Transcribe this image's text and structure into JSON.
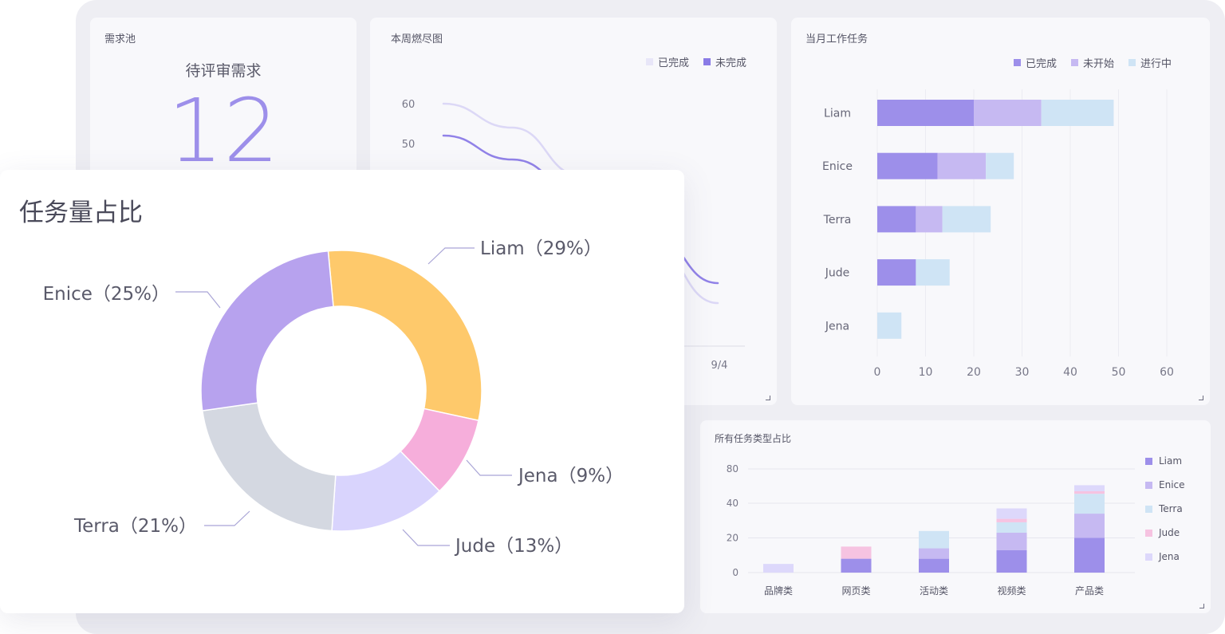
{
  "pool": {
    "title": "需求池",
    "label": "待评审需求",
    "value": "12"
  },
  "burndown": {
    "title": "本周燃尽图",
    "legend": [
      "已完成",
      "未完成"
    ],
    "yticks": [
      "60",
      "50"
    ],
    "xtick_last": "9/4"
  },
  "monthly": {
    "title": "当月工作任务",
    "legend": [
      "已完成",
      "未开始",
      "进行中"
    ]
  },
  "types": {
    "title": "所有任务类型占比"
  },
  "share": {
    "title": "任务量占比"
  },
  "colors": {
    "done": "#9d8fea",
    "notstarted": "#c6b9f2",
    "inprogress": "#cfe4f5",
    "liam": "#9d8fea",
    "enice": "#c6b9f2",
    "terra": "#cfe4f5",
    "jude": "#f6c3e1",
    "jena": "#ddd8fb",
    "pie_liam": "#fec96b",
    "pie_jena": "#f6aedb",
    "pie_jude": "#d9d4fd",
    "pie_terra": "#d4d8e1",
    "pie_enice": "#b7a2ee"
  },
  "chart_data": [
    {
      "type": "line",
      "title": "本周燃尽图",
      "series": [
        {
          "name": "已完成",
          "points": [
            [
              0,
              60
            ],
            [
              1,
              54
            ],
            [
              2,
              42
            ],
            [
              3,
              25
            ],
            [
              4,
              10
            ]
          ]
        },
        {
          "name": "未完成",
          "points": [
            [
              0,
              52
            ],
            [
              1,
              46
            ],
            [
              2,
              38
            ],
            [
              3,
              28
            ],
            [
              4,
              15
            ]
          ]
        }
      ],
      "xlabels": [
        "",
        "",
        "",
        "",
        "9/4"
      ],
      "yticks": [
        50,
        60
      ]
    },
    {
      "type": "bar",
      "orientation": "horizontal",
      "stacked": true,
      "title": "当月工作任务",
      "categories": [
        "Liam",
        "Enice",
        "Terra",
        "Jude",
        "Jena"
      ],
      "series": [
        {
          "name": "已完成",
          "values": [
            20,
            12.5,
            8,
            8,
            0
          ]
        },
        {
          "name": "未开始",
          "values": [
            14,
            10,
            5.5,
            0,
            0
          ]
        },
        {
          "name": "进行中",
          "values": [
            15,
            5.8,
            10,
            7,
            5
          ]
        }
      ],
      "xlim": [
        0,
        60
      ],
      "xticks": [
        0,
        10,
        20,
        30,
        40,
        50,
        60
      ],
      "legend_position": "top-right"
    },
    {
      "type": "bar",
      "stacked": true,
      "title": "所有任务类型占比",
      "categories": [
        "品牌类",
        "网页类",
        "活动类",
        "视频类",
        "产品类"
      ],
      "series": [
        {
          "name": "Liam",
          "values": [
            0,
            8,
            8,
            13,
            20
          ]
        },
        {
          "name": "Enice",
          "values": [
            0,
            0,
            6,
            10,
            14
          ]
        },
        {
          "name": "Terra",
          "values": [
            0,
            0,
            10,
            6,
            17
          ]
        },
        {
          "name": "Jude",
          "values": [
            0,
            7,
            0,
            2,
            3
          ]
        },
        {
          "name": "Jena",
          "values": [
            5,
            0,
            0,
            6,
            7
          ]
        }
      ],
      "yticks": [
        0,
        20,
        40,
        80
      ],
      "legend_position": "right"
    },
    {
      "type": "pie",
      "donut": true,
      "title": "任务量占比",
      "slices": [
        {
          "name": "Liam",
          "label": "Liam（29%）",
          "value": 29
        },
        {
          "name": "Jena",
          "label": "Jena（9%）",
          "value": 9
        },
        {
          "name": "Jude",
          "label": "Jude（13%）",
          "value": 13
        },
        {
          "name": "Terra",
          "label": "Terra（21%）",
          "value": 21
        },
        {
          "name": "Enice",
          "label": "Enice（25%）",
          "value": 25
        }
      ]
    }
  ]
}
